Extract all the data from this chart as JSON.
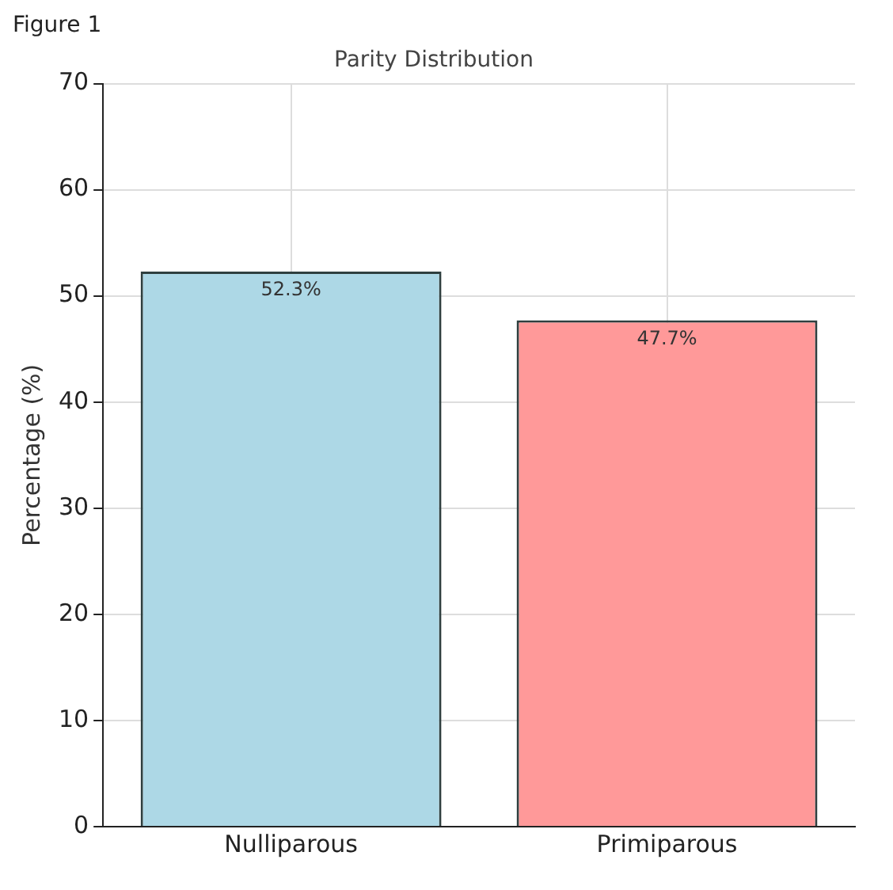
{
  "chart_data": {
    "type": "bar",
    "title": "Parity Distribution",
    "ylabel": "Percentage (%)",
    "annotations": [
      "Figure 1"
    ],
    "categories": [
      "Nulliparous",
      "Primiparous"
    ],
    "values": [
      52.3,
      47.7
    ],
    "colors": [
      "#add8e6",
      "#ff9999"
    ],
    "value_labels": [
      "52.3%",
      "47.7%"
    ],
    "ylim": [
      0,
      70
    ],
    "yticks": [
      0,
      10,
      20,
      30,
      40,
      50,
      60,
      70
    ],
    "grid": true,
    "legend": false
  }
}
